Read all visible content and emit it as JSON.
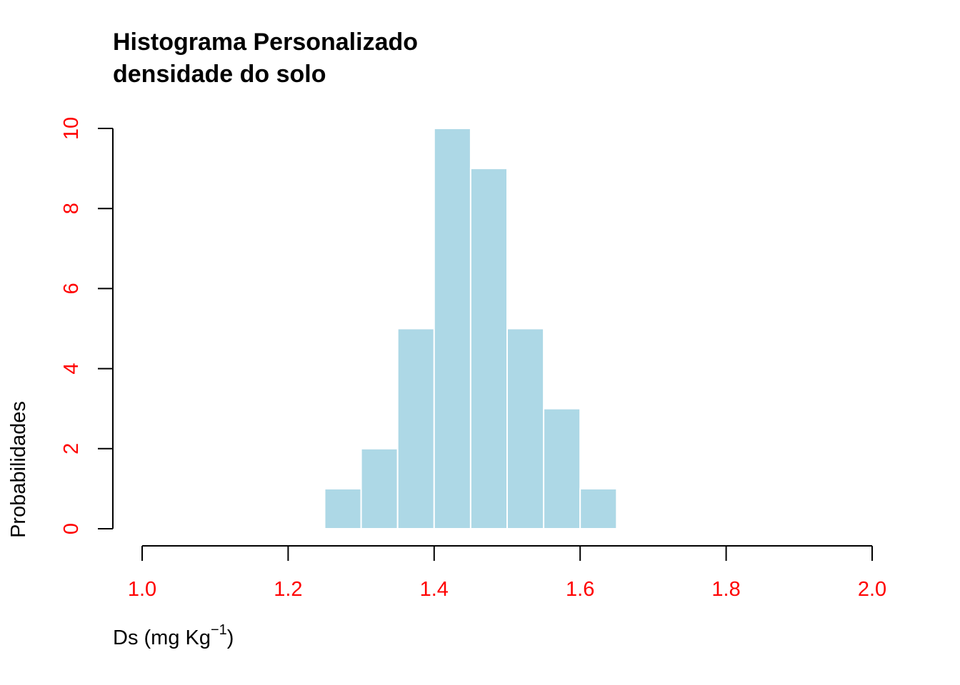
{
  "chart_data": {
    "type": "bar",
    "title_line1": "Histograma Personalizado",
    "title_line2": "densidade do solo",
    "xlabel": {
      "prefix": "Ds (mg Kg",
      "superscript": "−1",
      "suffix": ")"
    },
    "ylabel": "Probabilidades",
    "bins": [
      {
        "x0": 1.25,
        "x1": 1.3,
        "value": 1
      },
      {
        "x0": 1.3,
        "x1": 1.35,
        "value": 2
      },
      {
        "x0": 1.35,
        "x1": 1.4,
        "value": 5
      },
      {
        "x0": 1.4,
        "x1": 1.45,
        "value": 10
      },
      {
        "x0": 1.45,
        "x1": 1.5,
        "value": 9
      },
      {
        "x0": 1.5,
        "x1": 1.55,
        "value": 5
      },
      {
        "x0": 1.55,
        "x1": 1.6,
        "value": 3
      },
      {
        "x0": 1.6,
        "x1": 1.65,
        "value": 1
      }
    ],
    "xlim": [
      1.0,
      2.0
    ],
    "ylim": [
      0,
      10
    ],
    "xticks": [
      "1.0",
      "1.2",
      "1.4",
      "1.6",
      "1.8",
      "2.0"
    ],
    "yticks": [
      "0",
      "2",
      "4",
      "6",
      "8",
      "10"
    ],
    "grid": false,
    "colors": {
      "bar_fill": "#add8e6",
      "bar_border": "#ffffff",
      "tick_label": "#ff0000",
      "axis_line": "#000000"
    }
  }
}
